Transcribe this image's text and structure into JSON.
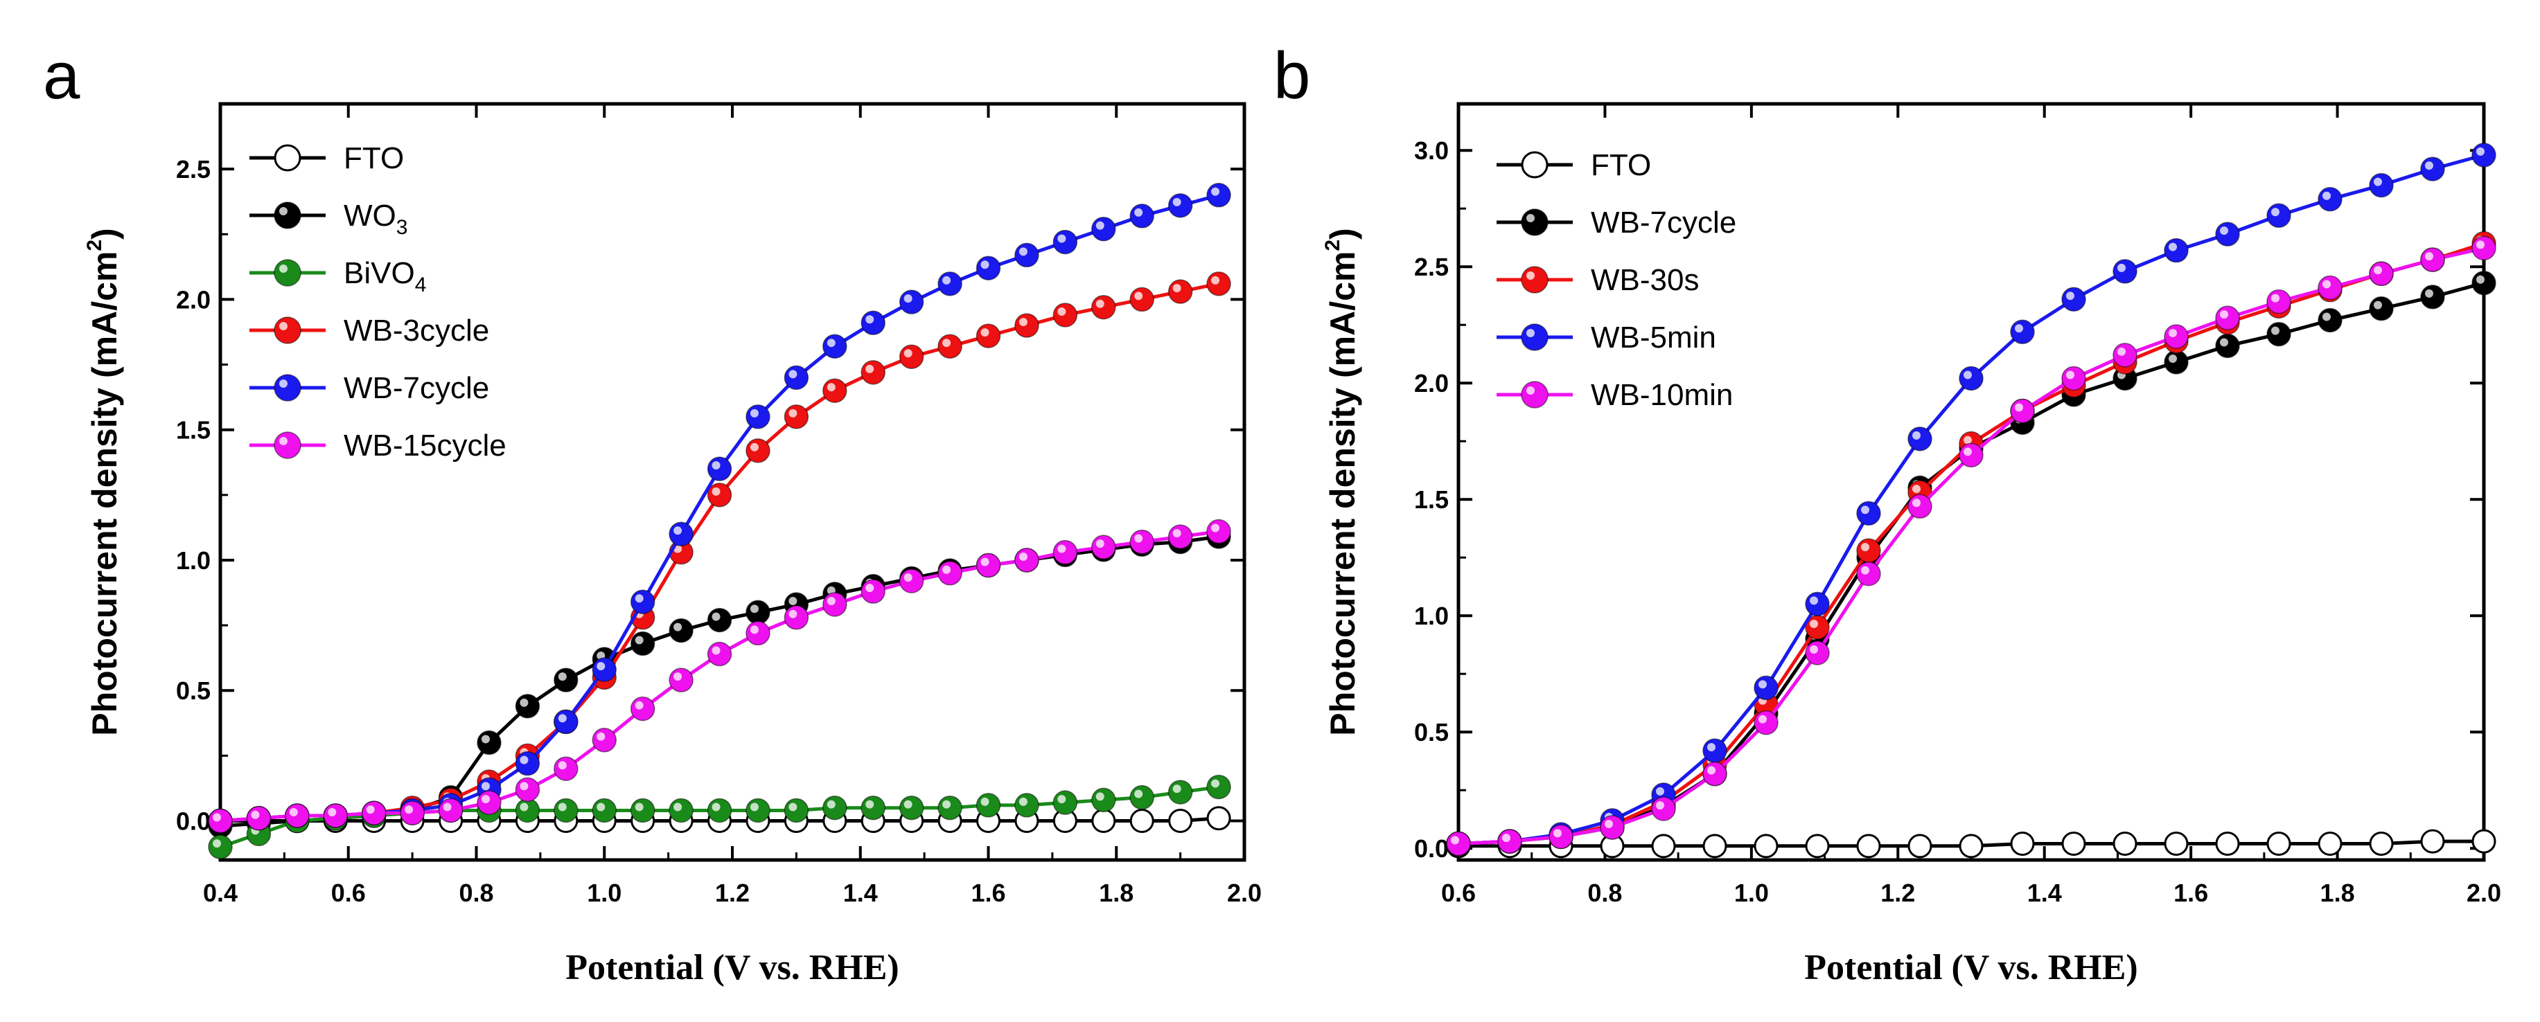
{
  "chart_data": [
    {
      "type": "line",
      "panel": "a",
      "xlabel": "Potential (V vs. RHE)",
      "ylabel": "Photocurrent density (mA/cm2)",
      "ylabel_main": "Photocurrent density (mA/cm",
      "ylabel_sup": "2",
      "ylabel_close": ")",
      "xlim": [
        0.4,
        2.0
      ],
      "ylim": [
        -0.15,
        2.75
      ],
      "xticks": [
        "0.4",
        "0.6",
        "0.8",
        "1.0",
        "1.2",
        "1.4",
        "1.6",
        "1.8",
        "2.0"
      ],
      "yticks": [
        "0.0",
        "0.5",
        "1.0",
        "1.5",
        "2.0",
        "2.5"
      ],
      "legend_position": "top-left",
      "x": [
        0.4,
        0.46,
        0.52,
        0.58,
        0.64,
        0.7,
        0.76,
        0.82,
        0.88,
        0.94,
        1.0,
        1.06,
        1.12,
        1.18,
        1.24,
        1.3,
        1.36,
        1.42,
        1.48,
        1.54,
        1.6,
        1.66,
        1.72,
        1.78,
        1.84,
        1.9,
        1.96
      ],
      "series": [
        {
          "name": "FTO",
          "legend_main": "FTO",
          "legend_sub": "",
          "color": "#000000",
          "marker": "open",
          "values": [
            0,
            0,
            0,
            0,
            0,
            0,
            0,
            0,
            0,
            0,
            0,
            0,
            0,
            0,
            0,
            0,
            0,
            0,
            0,
            0,
            0,
            0,
            0,
            0,
            0,
            0,
            0.01
          ]
        },
        {
          "name": "WO3",
          "legend_main": "WO",
          "legend_sub": "3",
          "color": "#000000",
          "marker": "filled",
          "values": [
            -0.02,
            -0.01,
            0.0,
            0.01,
            0.02,
            0.04,
            0.09,
            0.3,
            0.44,
            0.54,
            0.62,
            0.68,
            0.73,
            0.77,
            0.8,
            0.83,
            0.87,
            0.9,
            0.93,
            0.96,
            0.98,
            1.0,
            1.02,
            1.04,
            1.06,
            1.07,
            1.09
          ]
        },
        {
          "name": "BiVO4",
          "legend_main": "BiVO",
          "legend_sub": "4",
          "color": "#1a8a1a",
          "marker": "filled",
          "values": [
            -0.1,
            -0.05,
            0.0,
            0.01,
            0.02,
            0.03,
            0.04,
            0.04,
            0.04,
            0.04,
            0.04,
            0.04,
            0.04,
            0.04,
            0.04,
            0.04,
            0.05,
            0.05,
            0.05,
            0.05,
            0.06,
            0.06,
            0.07,
            0.08,
            0.09,
            0.11,
            0.13
          ]
        },
        {
          "name": "WB-3cycle",
          "legend_main": "WB-3cycle",
          "legend_sub": "",
          "color": "#ee1111",
          "marker": "filled",
          "values": [
            0.0,
            0.01,
            0.02,
            0.02,
            0.03,
            0.05,
            0.08,
            0.15,
            0.25,
            0.38,
            0.55,
            0.78,
            1.03,
            1.25,
            1.42,
            1.55,
            1.65,
            1.72,
            1.78,
            1.82,
            1.86,
            1.9,
            1.94,
            1.97,
            2.0,
            2.03,
            2.06
          ]
        },
        {
          "name": "WB-7cycle",
          "legend_main": "WB-7cycle",
          "legend_sub": "",
          "color": "#1a1aee",
          "marker": "filled",
          "values": [
            0.0,
            0.01,
            0.02,
            0.02,
            0.03,
            0.04,
            0.06,
            0.12,
            0.22,
            0.38,
            0.58,
            0.84,
            1.1,
            1.35,
            1.55,
            1.7,
            1.82,
            1.91,
            1.99,
            2.06,
            2.12,
            2.17,
            2.22,
            2.27,
            2.32,
            2.36,
            2.4
          ]
        },
        {
          "name": "WB-15cycle",
          "legend_main": "WB-15cycle",
          "legend_sub": "",
          "color": "#ee11ee",
          "marker": "filled",
          "values": [
            0.0,
            0.01,
            0.02,
            0.02,
            0.03,
            0.03,
            0.04,
            0.07,
            0.12,
            0.2,
            0.31,
            0.43,
            0.54,
            0.64,
            0.72,
            0.78,
            0.83,
            0.88,
            0.92,
            0.95,
            0.98,
            1.0,
            1.03,
            1.05,
            1.07,
            1.09,
            1.11
          ]
        }
      ]
    },
    {
      "type": "line",
      "panel": "b",
      "xlabel": "Potential (V vs. RHE)",
      "ylabel": "Photocurrent density (mA/cm2)",
      "ylabel_main": "Photocurrent density (mA/cm",
      "ylabel_sup": "2",
      "ylabel_close": ")",
      "xlim": [
        0.6,
        2.0
      ],
      "ylim": [
        -0.05,
        3.2
      ],
      "xticks": [
        "0.6",
        "0.8",
        "1.0",
        "1.2",
        "1.4",
        "1.6",
        "1.8",
        "2.0"
      ],
      "yticks": [
        "0.0",
        "0.5",
        "1.0",
        "1.5",
        "2.0",
        "2.5",
        "3.0"
      ],
      "legend_position": "top-left",
      "x": [
        0.6,
        0.67,
        0.74,
        0.81,
        0.88,
        0.95,
        1.02,
        1.09,
        1.16,
        1.23,
        1.3,
        1.37,
        1.44,
        1.51,
        1.58,
        1.65,
        1.72,
        1.79,
        1.86,
        1.93,
        2.0
      ],
      "series": [
        {
          "name": "FTO",
          "legend_main": " FTO",
          "legend_sub": "",
          "color": "#000000",
          "marker": "open",
          "values": [
            0.01,
            0.01,
            0.01,
            0.01,
            0.01,
            0.01,
            0.01,
            0.01,
            0.01,
            0.01,
            0.01,
            0.02,
            0.02,
            0.02,
            0.02,
            0.02,
            0.02,
            0.02,
            0.02,
            0.03,
            0.03
          ]
        },
        {
          "name": "WB-7cycle",
          "legend_main": "WB-7cycle",
          "legend_sub": "",
          "color": "#000000",
          "marker": "filled",
          "values": [
            0.02,
            0.03,
            0.05,
            0.09,
            0.18,
            0.32,
            0.58,
            0.9,
            1.25,
            1.55,
            1.72,
            1.83,
            1.95,
            2.02,
            2.09,
            2.16,
            2.21,
            2.27,
            2.32,
            2.37,
            2.43
          ]
        },
        {
          "name": "WB-30s",
          "legend_main": "WB-30s",
          "legend_sub": "",
          "color": "#ee1111",
          "marker": "filled",
          "values": [
            0.02,
            0.03,
            0.05,
            0.1,
            0.2,
            0.36,
            0.62,
            0.95,
            1.28,
            1.53,
            1.74,
            1.88,
            1.99,
            2.09,
            2.18,
            2.26,
            2.33,
            2.4,
            2.47,
            2.53,
            2.6
          ]
        },
        {
          "name": "WB-5min",
          "legend_main": "WB-5min",
          "legend_sub": "",
          "color": "#1a1aee",
          "marker": "filled",
          "values": [
            0.02,
            0.03,
            0.06,
            0.12,
            0.23,
            0.42,
            0.69,
            1.05,
            1.44,
            1.76,
            2.02,
            2.22,
            2.36,
            2.48,
            2.57,
            2.64,
            2.72,
            2.79,
            2.85,
            2.92,
            2.98
          ]
        },
        {
          "name": "WB-10min",
          "legend_main": "WB-10min",
          "legend_sub": "",
          "color": "#ee11ee",
          "marker": "filled",
          "values": [
            0.02,
            0.03,
            0.05,
            0.09,
            0.17,
            0.32,
            0.54,
            0.84,
            1.18,
            1.47,
            1.69,
            1.88,
            2.02,
            2.12,
            2.2,
            2.28,
            2.35,
            2.41,
            2.47,
            2.53,
            2.58
          ]
        }
      ]
    }
  ]
}
